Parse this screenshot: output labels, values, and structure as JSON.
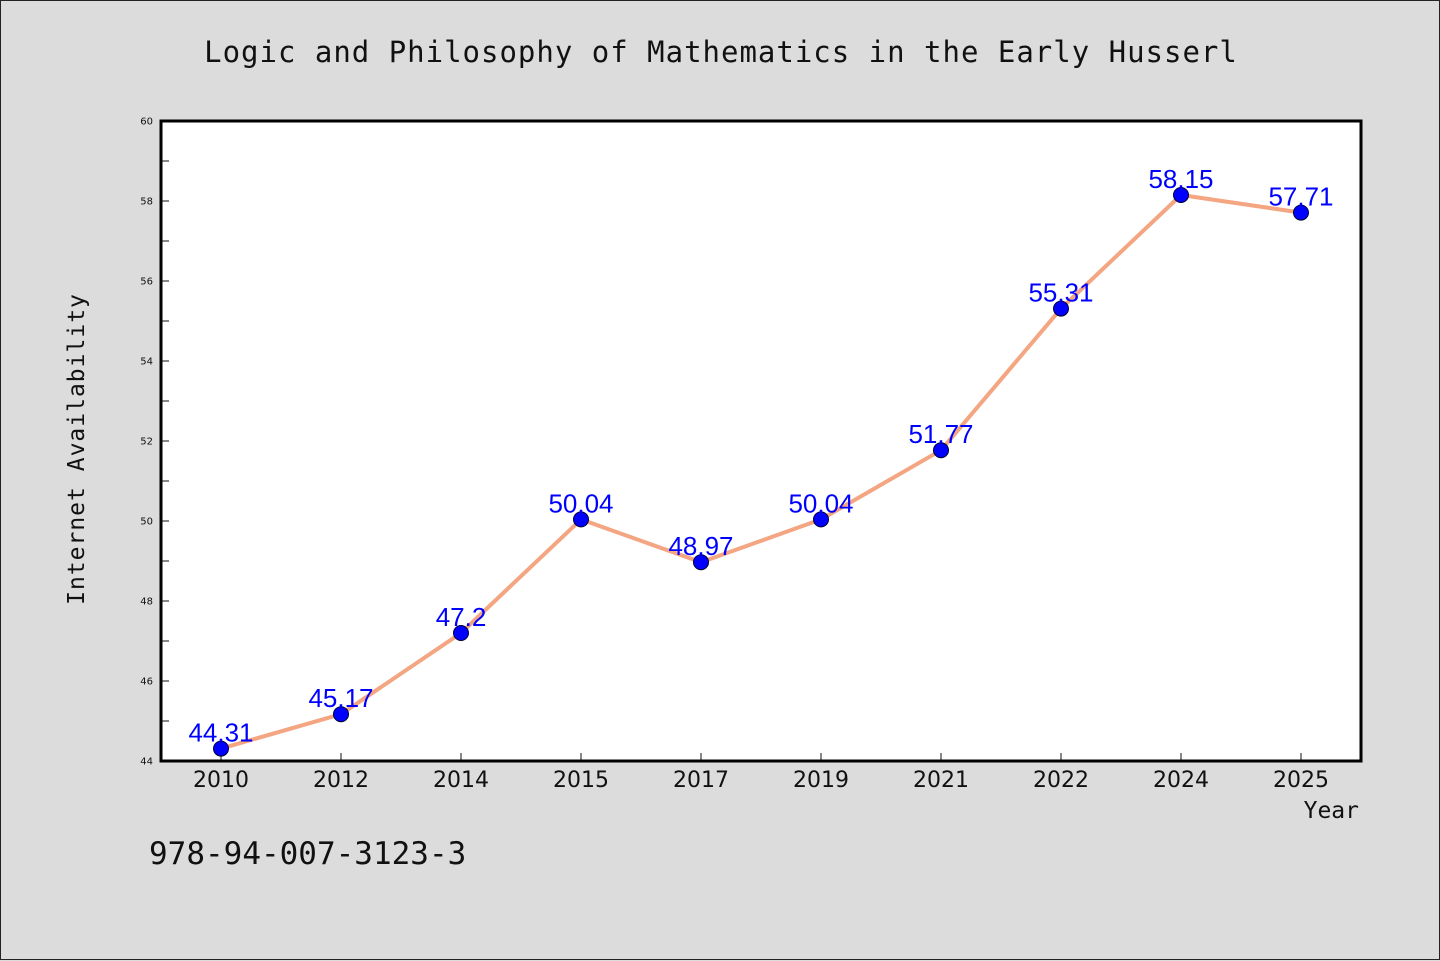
{
  "chart_data": {
    "type": "line",
    "title": "Logic and Philosophy of Mathematics in the Early Husserl",
    "xlabel": "Year",
    "ylabel": "Internet Availability",
    "categories": [
      "2010",
      "2012",
      "2014",
      "2015",
      "2017",
      "2019",
      "2021",
      "2022",
      "2024",
      "2025"
    ],
    "series": [
      {
        "values": [
          44.31,
          45.17,
          47.2,
          50.04,
          48.97,
          50.04,
          51.77,
          55.31,
          58.15,
          57.71
        ],
        "data_labels": [
          "44.31",
          "45.17",
          "47.2",
          "50.04",
          "48.97",
          "50.04",
          "51.77",
          "55.31",
          "58.15",
          "57.71"
        ]
      }
    ],
    "ylim": [
      44,
      60
    ],
    "yticks": [
      "44",
      "46",
      "48",
      "50",
      "52",
      "54",
      "56",
      "58",
      "60"
    ],
    "grid": false,
    "legend": "none",
    "line_color": "#f4a582",
    "marker_color": "#0000ff",
    "label_color": "#0000ff",
    "background": "#dcdcdc",
    "plot_background": "#ffffff"
  },
  "footer": {
    "code": "978-94-007-3123-3"
  }
}
